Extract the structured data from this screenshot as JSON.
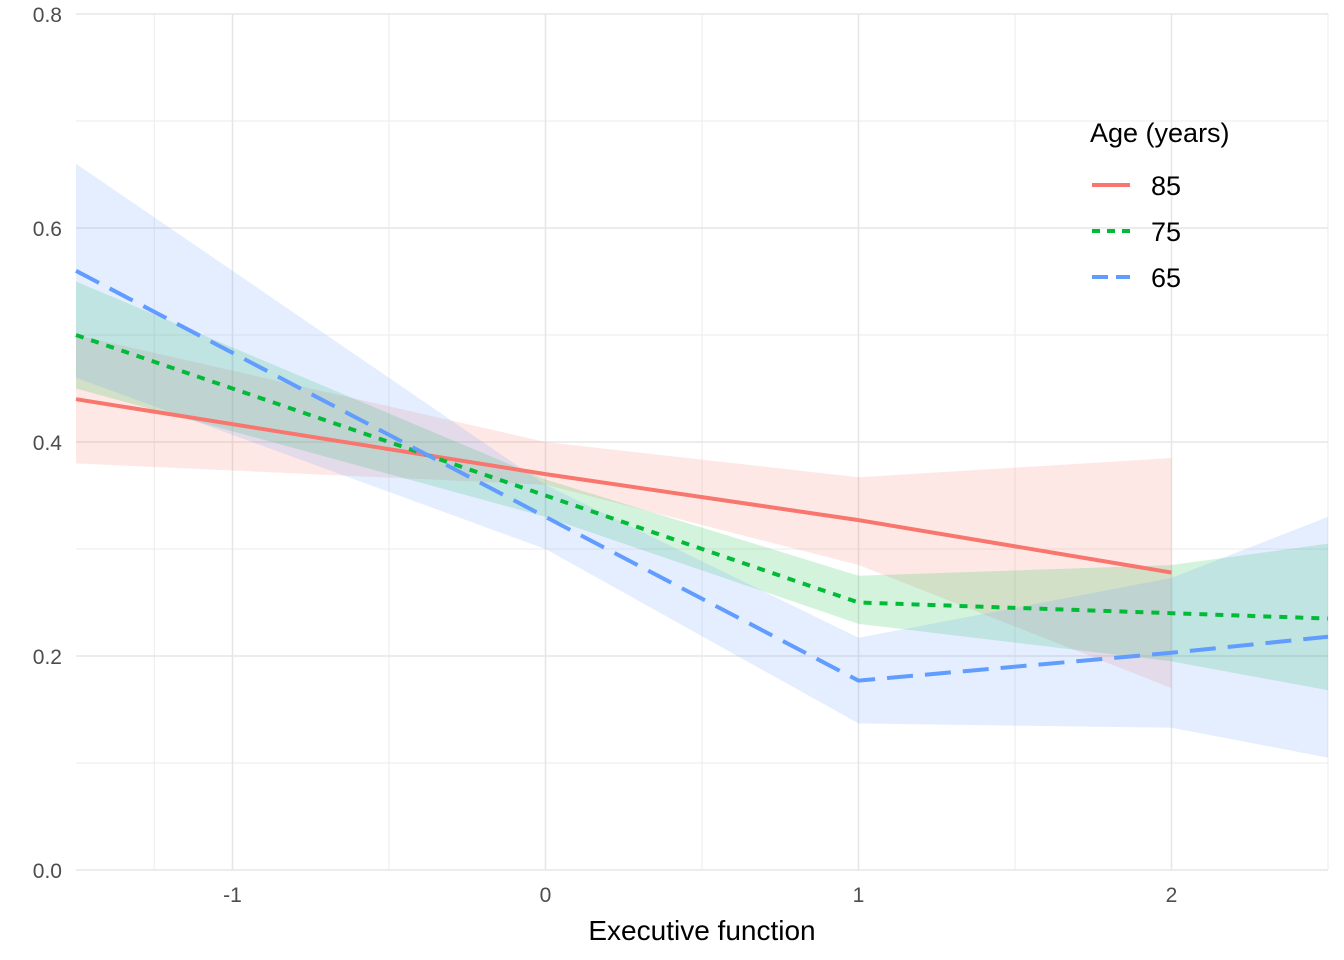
{
  "chart_data": {
    "type": "line",
    "title": "",
    "xlabel": "Executive function",
    "ylabel": "",
    "xlim": [
      -1.5,
      2.5
    ],
    "ylim": [
      0.0,
      0.8
    ],
    "x_ticks": [
      -1,
      0,
      1,
      2
    ],
    "x_tick_labels": [
      "-1",
      "0",
      "1",
      "2"
    ],
    "y_ticks": [
      0.0,
      0.2,
      0.4,
      0.6,
      0.8
    ],
    "y_tick_labels": [
      "0.0",
      "0.2",
      "0.4",
      "0.6",
      "0.8"
    ],
    "grid": true,
    "legend": {
      "title": "Age (years)",
      "position": "top-right"
    },
    "series": [
      {
        "name": "85",
        "color": "#F8766D",
        "dash": "solid",
        "x": [
          -1.5,
          0,
          1,
          2
        ],
        "y": [
          0.44,
          0.37,
          0.327,
          0.278
        ],
        "lower": [
          0.38,
          0.36,
          0.285,
          0.17
        ],
        "upper": [
          0.5,
          0.4,
          0.367,
          0.385
        ]
      },
      {
        "name": "75",
        "color": "#00BA38",
        "dash": "dotted",
        "x": [
          -1.5,
          0,
          1,
          2,
          2.5
        ],
        "y": [
          0.5,
          0.35,
          0.25,
          0.24,
          0.235
        ],
        "lower": [
          0.45,
          0.33,
          0.23,
          0.195,
          0.168
        ],
        "upper": [
          0.55,
          0.365,
          0.275,
          0.285,
          0.305
        ]
      },
      {
        "name": "65",
        "color": "#619CFF",
        "dash": "dashed",
        "x": [
          -1.5,
          0,
          1,
          2,
          2.5
        ],
        "y": [
          0.56,
          0.33,
          0.177,
          0.203,
          0.218
        ],
        "lower": [
          0.46,
          0.3,
          0.137,
          0.133,
          0.105
        ],
        "upper": [
          0.66,
          0.36,
          0.217,
          0.273,
          0.33
        ]
      }
    ]
  }
}
